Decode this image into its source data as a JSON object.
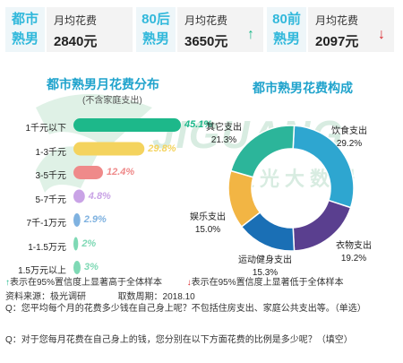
{
  "stats": [
    {
      "tag": "都市熟男",
      "label": "月均花费",
      "value": "2840元",
      "arrow": "",
      "arrow_color": ""
    },
    {
      "tag": "80后熟男",
      "label": "月均花费",
      "value": "3650元",
      "arrow": "↑",
      "arrow_color": "#1db88a"
    },
    {
      "tag": "80前熟男",
      "label": "月均花费",
      "value": "2097元",
      "arrow": "↓",
      "arrow_color": "#d9262c"
    }
  ],
  "watermark": {
    "latin": "JIGUANG",
    "cn": "极光大数据"
  },
  "chart_data": [
    {
      "type": "bar",
      "title": "都市熟男月花费分布",
      "subtitle": "(不含家庭支出)",
      "categories": [
        "1千元以下",
        "1-3千元",
        "3-5千元",
        "5-7千元",
        "7千-1万元",
        "1-1.5万元",
        "1.5万元以上"
      ],
      "values": [
        45.1,
        29.8,
        12.4,
        4.8,
        2.9,
        2.0,
        3.0
      ],
      "value_labels": [
        "45.1%",
        "29.8%",
        "12.4%",
        "4.8%",
        "2.9%",
        "2%",
        "3%"
      ],
      "colors": [
        "#1db88a",
        "#f4d35e",
        "#ef8a8a",
        "#c9a3e6",
        "#7fb2e0",
        "#7fd9b5",
        "#7fd9b5"
      ]
    },
    {
      "type": "pie",
      "title": "都市熟男花费构成",
      "slices": [
        {
          "name": "饮食支出",
          "value": 29.2,
          "label": "29.2%",
          "color": "#2ea6d0"
        },
        {
          "name": "衣物支出",
          "value": 19.2,
          "label": "19.2%",
          "color": "#5a3f8f"
        },
        {
          "name": "运动健身支出",
          "value": 15.3,
          "label": "15.3%",
          "color": "#1a6fb5"
        },
        {
          "name": "娱乐支出",
          "value": 15.0,
          "label": "15.0%",
          "color": "#f2b544"
        },
        {
          "name": "其它支出",
          "value": 21.3,
          "label": "21.3%",
          "color": "#2cb59a"
        }
      ]
    }
  ],
  "footer": {
    "up_icon": "↑",
    "up_text": "表示在95%置信度上显著高于全体样本",
    "down_icon": "↓",
    "down_text": "表示在95%置信度上显著低于全体样本",
    "source": "资料来源：极光调研",
    "period": "取数周期：2018.10",
    "q1": "Q：您平均每个月的花费多少钱在自己身上呢？不包括住房支出、家庭公共支出等。（单选）",
    "q2": "Q：对于您每月花费在自己身上的钱，您分别在以下方面花费的比例是多少呢？（填空）"
  }
}
